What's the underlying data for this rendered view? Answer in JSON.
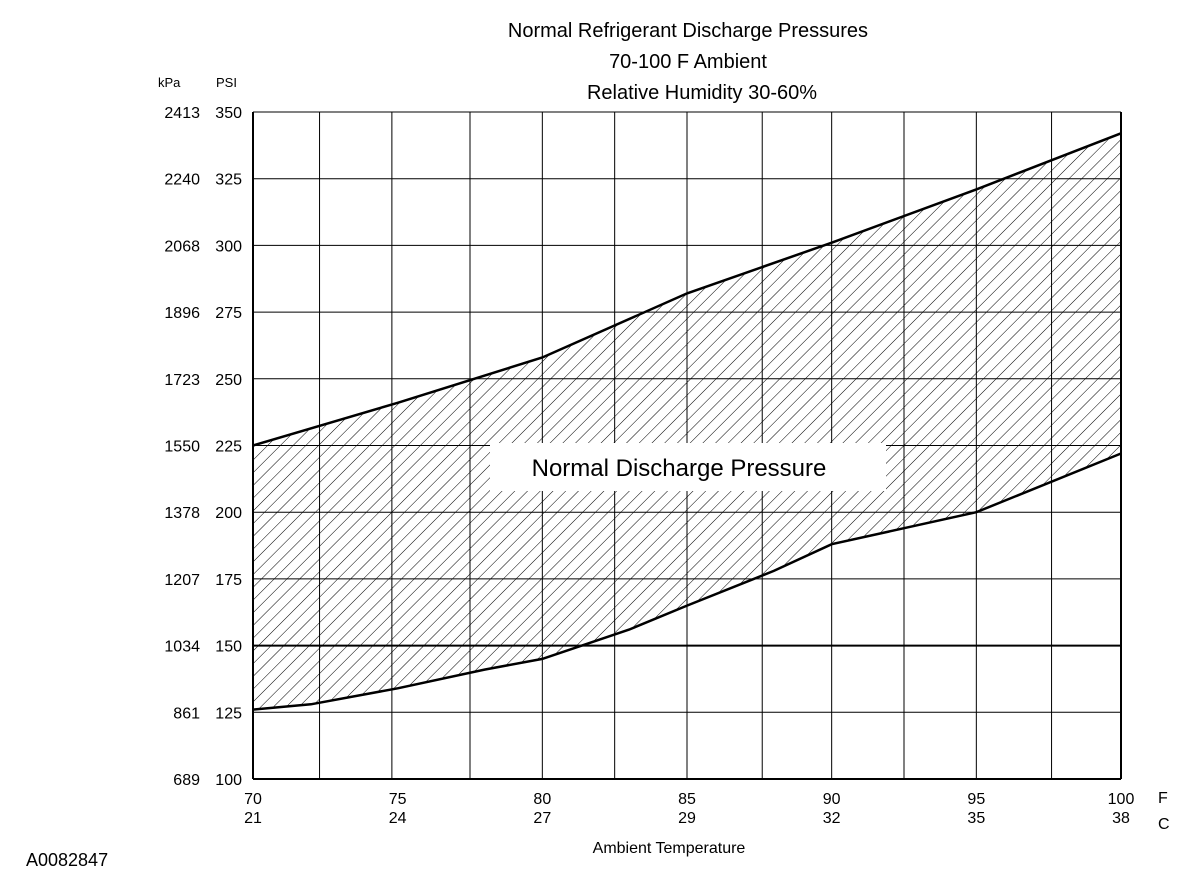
{
  "figure_id": "A0082847",
  "chart_data": {
    "type": "area",
    "title_lines": [
      "Normal  Refrigerant  Discharge  Pressures",
      "70-100 F Ambient",
      "Relative Humidity 30-60%"
    ],
    "band_label": "Normal Discharge Pressure",
    "xlabel": "Ambient Temperature",
    "x_unit_labels": [
      "F",
      "C"
    ],
    "y_unit_labels": [
      "kPa",
      "PSI"
    ],
    "xlim": [
      70,
      100
    ],
    "ylim": [
      100,
      350
    ],
    "x_ticks": [
      {
        "f": "70",
        "c": "21",
        "value": 70
      },
      {
        "f": "75",
        "c": "24",
        "value": 75
      },
      {
        "f": "80",
        "c": "27",
        "value": 80
      },
      {
        "f": "85",
        "c": "29",
        "value": 85
      },
      {
        "f": "90",
        "c": "32",
        "value": 90
      },
      {
        "f": "95",
        "c": "35",
        "value": 95
      },
      {
        "f": "100",
        "c": "38",
        "value": 100
      }
    ],
    "y_ticks": [
      {
        "psi": "350",
        "kpa": "2413",
        "value": 350
      },
      {
        "psi": "325",
        "kpa": "2240",
        "value": 325
      },
      {
        "psi": "300",
        "kpa": "2068",
        "value": 300
      },
      {
        "psi": "275",
        "kpa": "1896",
        "value": 275
      },
      {
        "psi": "250",
        "kpa": "1723",
        "value": 250
      },
      {
        "psi": "225",
        "kpa": "1550",
        "value": 225
      },
      {
        "psi": "200",
        "kpa": "1378",
        "value": 200
      },
      {
        "psi": "175",
        "kpa": "1207",
        "value": 175
      },
      {
        "psi": "150",
        "kpa": "1034",
        "value": 150
      },
      {
        "psi": "125",
        "kpa": "861",
        "value": 125
      },
      {
        "psi": "100",
        "kpa": "689",
        "value": 100
      }
    ],
    "x_gridlines": [
      70,
      72.3,
      74.8,
      77.5,
      80,
      82.5,
      85,
      87.6,
      90,
      92.5,
      95,
      97.6,
      100
    ],
    "grid": true,
    "series": [
      {
        "role": "upper",
        "x": [
          70,
          75,
          80,
          85,
          90,
          95,
          100
        ],
        "y": [
          225,
          241,
          258,
          282,
          301,
          321,
          342
        ]
      },
      {
        "role": "lower",
        "x": [
          70,
          72,
          75,
          78,
          80,
          83,
          85,
          88,
          90,
          95,
          100
        ],
        "y": [
          126,
          128,
          134,
          141,
          145,
          156,
          165,
          178,
          188,
          200,
          222
        ]
      }
    ]
  }
}
